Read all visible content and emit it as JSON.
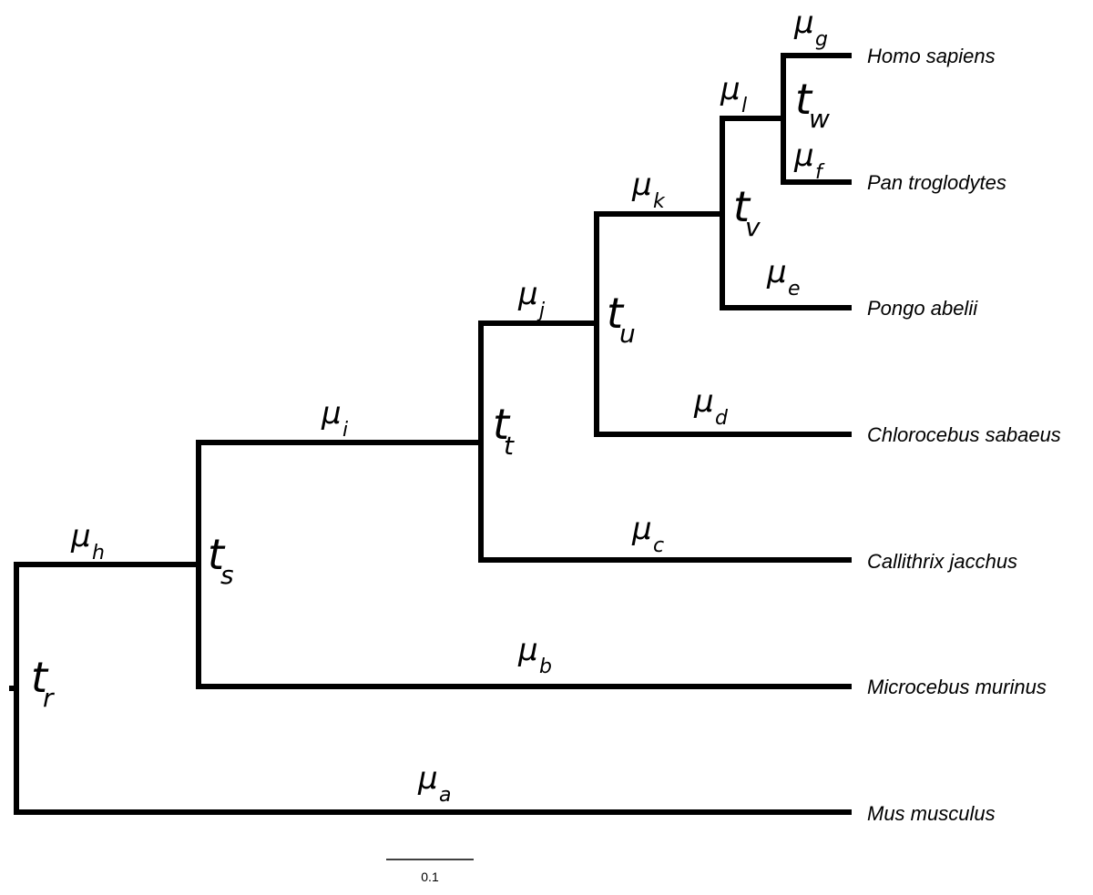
{
  "taxa": {
    "homo": "Homo sapiens",
    "pan": "Pan troglodytes",
    "pongo": "Pongo abelii",
    "chloro": "Chlorocebus sabaeus",
    "calli": "Callithrix jacchus",
    "micro": "Microcebus murinus",
    "mus": "Mus musculus"
  },
  "branch_rates": {
    "symbol": "μ",
    "a": "a",
    "b": "b",
    "c": "c",
    "d": "d",
    "e": "e",
    "f": "f",
    "g": "g",
    "h": "h",
    "i": "i",
    "j": "j",
    "k": "k",
    "l": "l"
  },
  "node_times": {
    "symbol": "t",
    "r": "r",
    "s": "s",
    "t": "t",
    "u": "u",
    "v": "v",
    "w": "w"
  },
  "scale_bar": {
    "label": "0.1"
  }
}
